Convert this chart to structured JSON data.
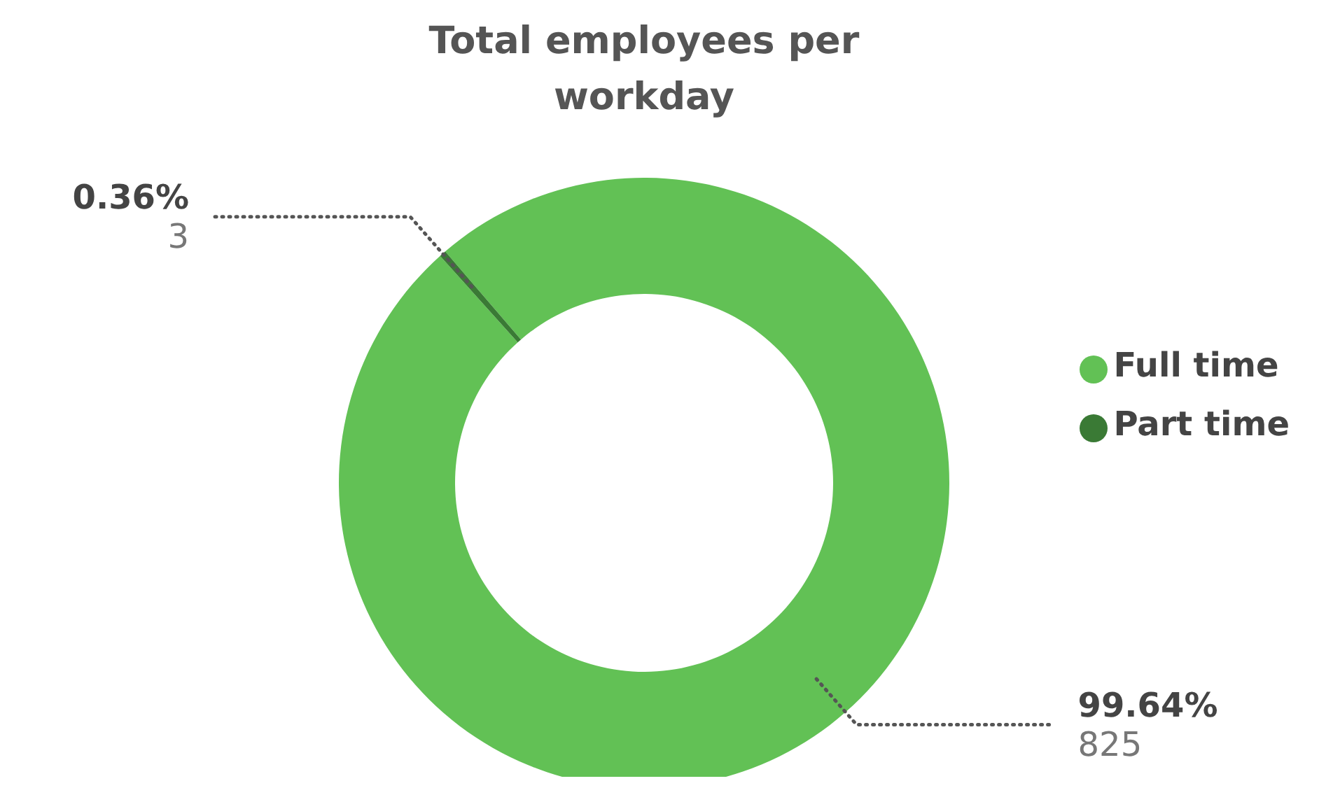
{
  "chart_data": {
    "type": "donut",
    "title": "Total employees per workday",
    "categories": [
      "Full time",
      "Part time"
    ],
    "values": [
      99.64,
      0.36
    ],
    "colors": [
      "#62c155",
      "#3a7a35"
    ],
    "value_labels": [
      "99.64%",
      "0.36%"
    ],
    "annotations": [
      "825",
      "3"
    ],
    "legend": "right"
  }
}
